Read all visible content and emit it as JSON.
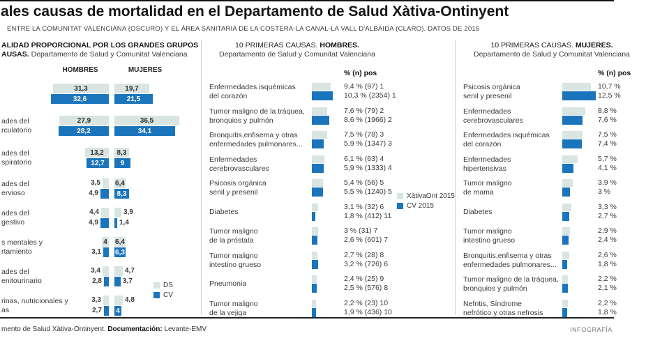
{
  "header": {
    "title": "ales causas de mortalidad en el Departamento de Salud Xàtiva-Ontinyent",
    "subtitle": "ENTRE LA COMUNITAT VALENCIANA (OSCURO) Y EL ÁREA SANITARIA DE LA COSTERA-LA CANAL-LA VALL D'ALBAIDA (CLARO). DATOS DE 2015"
  },
  "colors": {
    "light": "#d8e5e2",
    "dark": "#1b75bc",
    "divider": "#cfcfcf"
  },
  "footer": {
    "source_text": "mento de Salud Xàtiva-Ontinyent.",
    "doc_label": "Documentación:",
    "doc_value": "Levante-EMV",
    "infografia": "INFOGRAFÍA"
  },
  "chart_data": [
    {
      "id": "mortalidad-proporcional-grandes-grupos",
      "type": "bar",
      "title_line1": "ALIDAD PROPORCIONAL POR LOS GRANDES GRUPOS",
      "title_line2_bold": "AUSAS.",
      "title_line2_rest": "Departamento de Salud y Comunitat Valenciana",
      "unit": "%",
      "column_headers": [
        "HOMBRES",
        "MUJERES"
      ],
      "legend": [
        {
          "label": "DS",
          "color_key": "light"
        },
        {
          "label": "CV",
          "color_key": "dark"
        }
      ],
      "rows": [
        {
          "label_lines": [],
          "hombres": {
            "ds": 31.3,
            "ds_text": "31,3",
            "cv": 32.6,
            "cv_text": "32,6"
          },
          "mujeres": {
            "ds": 19.7,
            "ds_text": "19,7",
            "cv": 21.5,
            "cv_text": "21,5"
          }
        },
        {
          "label_lines": [
            "ades del",
            "rculatorio"
          ],
          "hombres": {
            "ds": 27.9,
            "ds_text": "27,9",
            "cv": 28.2,
            "cv_text": "28,2"
          },
          "mujeres": {
            "ds": 36.5,
            "ds_text": "36,5",
            "cv": 34.1,
            "cv_text": "34,1"
          }
        },
        {
          "label_lines": [
            "ades del",
            "spiratorio"
          ],
          "hombres": {
            "ds": 13.2,
            "ds_text": "13,2",
            "cv": 12.7,
            "cv_text": "12,7"
          },
          "mujeres": {
            "ds": 8.3,
            "ds_text": "8,3",
            "cv": 9,
            "cv_text": "9"
          }
        },
        {
          "label_lines": [
            "ades del",
            "ervioso"
          ],
          "hombres": {
            "ds": 3.5,
            "ds_text": "3,5",
            "cv": 4.9,
            "cv_text": "4,9"
          },
          "mujeres": {
            "ds": 6.4,
            "ds_text": "6,4",
            "cv": 8.3,
            "cv_text": "8,3"
          }
        },
        {
          "label_lines": [
            "ades del",
            "gestivo"
          ],
          "hombres": {
            "ds": 4.4,
            "ds_text": "4,4",
            "cv": 4.9,
            "cv_text": "4,9"
          },
          "mujeres": {
            "ds": 3.9,
            "ds_text": "3,9",
            "cv": 1.4,
            "cv_text": "1,4"
          }
        },
        {
          "label_lines": [
            "s mentales y",
            "rtamiento"
          ],
          "hombres": {
            "ds": 4,
            "ds_text": "4",
            "cv": 3.1,
            "cv_text": "3,1"
          },
          "mujeres": {
            "ds": 6.4,
            "ds_text": "6,4",
            "cv": 6.3,
            "cv_text": "6,3"
          }
        },
        {
          "label_lines": [
            "ades del",
            "enitourinario"
          ],
          "hombres": {
            "ds": 3.4,
            "ds_text": "3,4",
            "cv": 2.8,
            "cv_text": "2,8"
          },
          "mujeres": {
            "ds": 4.7,
            "ds_text": "4,7",
            "cv": 3.7,
            "cv_text": "3,7"
          }
        },
        {
          "label_lines": [
            "rinas, nutricionales y",
            "as"
          ],
          "hombres": {
            "ds": 3.3,
            "ds_text": "3,3",
            "cv": 2.7,
            "cv_text": "2,7"
          },
          "mujeres": {
            "ds": 4.8,
            "ds_text": "4,8",
            "cv": 4,
            "cv_text": "4"
          }
        }
      ]
    },
    {
      "id": "top10-hombres",
      "type": "bar",
      "title_plain": "10 PRIMERAS CAUSAS.",
      "title_bold": "HOMBRES.",
      "subtitle": "Departamento de Salud y Comunitat Valenciana",
      "value_header": "% (n) pos",
      "legend": [
        {
          "label": "XàtivaOnt 2015",
          "color_key": "light"
        },
        {
          "label": "CV 2015",
          "color_key": "dark"
        }
      ],
      "rows": [
        {
          "label_lines": [
            "Enfermedades isquémicas",
            "del corazón"
          ],
          "ds_pct": 9.4,
          "cv_pct": 10.3,
          "ds_text": "9,4 % (97) 1",
          "cv_text": "10,3 % (2354) 1"
        },
        {
          "label_lines": [
            "Tumor maligno de la tráquea,",
            "bronquios y pulmón"
          ],
          "ds_pct": 7.6,
          "cv_pct": 8.6,
          "ds_text": "7,6 % (79) 2",
          "cv_text": "8,6 % (1966) 2"
        },
        {
          "label_lines": [
            "Bronquitis,enfisema y otras",
            "enfermedades pulmonares..."
          ],
          "ds_pct": 7.5,
          "cv_pct": 5.9,
          "ds_text": "7,5 % (78) 3",
          "cv_text": "5,9 % (1347) 3"
        },
        {
          "label_lines": [
            "Enfermedades",
            "cerebrovasculares"
          ],
          "ds_pct": 6.1,
          "cv_pct": 5.9,
          "ds_text": "6,1 % (63) 4",
          "cv_text": "5,9 % (1333) 4"
        },
        {
          "label_lines": [
            "Psicosis orgánica",
            "senil y presenil"
          ],
          "ds_pct": 5.4,
          "cv_pct": 5.5,
          "ds_text": "5,4 % (56) 5",
          "cv_text": "5,5 % (1240) 5"
        },
        {
          "label_lines": [
            "Diabetes"
          ],
          "ds_pct": 3.1,
          "cv_pct": 1.8,
          "ds_text": "3,1 % (32) 6",
          "cv_text": "1,8 % (412) 11"
        },
        {
          "label_lines": [
            "Tumor maligno",
            "de la próstata"
          ],
          "ds_pct": 3,
          "cv_pct": 2.6,
          "ds_text": "3 % (31) 7",
          "cv_text": "2,6 % (601) 7"
        },
        {
          "label_lines": [
            "Tumor maligno",
            "intestino grueso"
          ],
          "ds_pct": 2.7,
          "cv_pct": 3.2,
          "ds_text": "2,7 % (28) 8",
          "cv_text": "3,2 % (726) 6"
        },
        {
          "label_lines": [
            "Pneumonia"
          ],
          "ds_pct": 2.4,
          "cv_pct": 2.5,
          "ds_text": "2,4 % (25) 9",
          "cv_text": "2,5 % (576) 8"
        },
        {
          "label_lines": [
            "Tumor maligno",
            "de la vejiga"
          ],
          "ds_pct": 2.2,
          "cv_pct": 1.9,
          "ds_text": "2,2 % (23) 10",
          "cv_text": "1,9 % (436) 10"
        }
      ]
    },
    {
      "id": "top10-mujeres",
      "type": "bar",
      "title_plain": "10 PRIMERAS CAUSAS.",
      "title_bold": "MUJERES.",
      "subtitle": "Departamento de Salud y Comunitat Valenciana",
      "value_header": "% (n) pos",
      "rows": [
        {
          "label_lines": [
            "Psicosis orgánica",
            "senil y presenil"
          ],
          "ds_pct": 10.7,
          "cv_pct": 12.5,
          "ds_text": "10,7 %",
          "cv_text": "12,5 %"
        },
        {
          "label_lines": [
            "Enfermedades",
            "cerebrovasculares"
          ],
          "ds_pct": 8.8,
          "cv_pct": 7.6,
          "ds_text": "8,8 %",
          "cv_text": "7,6 %"
        },
        {
          "label_lines": [
            "Enfermedades isquémicas",
            "del corazón"
          ],
          "ds_pct": 7.5,
          "cv_pct": 7.4,
          "ds_text": "7,5 %",
          "cv_text": "7,4 %"
        },
        {
          "label_lines": [
            "Enfermedades",
            "hipertensivas"
          ],
          "ds_pct": 5.7,
          "cv_pct": 4.1,
          "ds_text": "5,7 %",
          "cv_text": "4,1 %"
        },
        {
          "label_lines": [
            "Tumor maligno",
            "de mama"
          ],
          "ds_pct": 3.9,
          "cv_pct": 3,
          "ds_text": "3,9 %",
          "cv_text": "3 %"
        },
        {
          "label_lines": [
            "Diabetes"
          ],
          "ds_pct": 3.3,
          "cv_pct": 2.7,
          "ds_text": "3,3 %",
          "cv_text": "2,7 %"
        },
        {
          "label_lines": [
            "Tumor maligno",
            "intestino grueso"
          ],
          "ds_pct": 2.9,
          "cv_pct": 2.4,
          "ds_text": "2,9 %",
          "cv_text": "2,4 %"
        },
        {
          "label_lines": [
            "Bronquitis,enfisema y otras",
            "enfermedades pulmonares..."
          ],
          "ds_pct": 2.6,
          "cv_pct": 1.8,
          "ds_text": "2,6 %",
          "cv_text": "1,8 %"
        },
        {
          "label_lines": [
            "Tumor maligno de la tráquea,",
            "bronquios y pulmón"
          ],
          "ds_pct": 2.2,
          "cv_pct": 2.1,
          "ds_text": "2,2 %",
          "cv_text": "2,1 %"
        },
        {
          "label_lines": [
            "Nefritis, Síndrome",
            "nefrótico y otras nefrosis"
          ],
          "ds_pct": 2.2,
          "cv_pct": 1.8,
          "ds_text": "2,2 %",
          "cv_text": "1,8 %"
        }
      ]
    }
  ]
}
